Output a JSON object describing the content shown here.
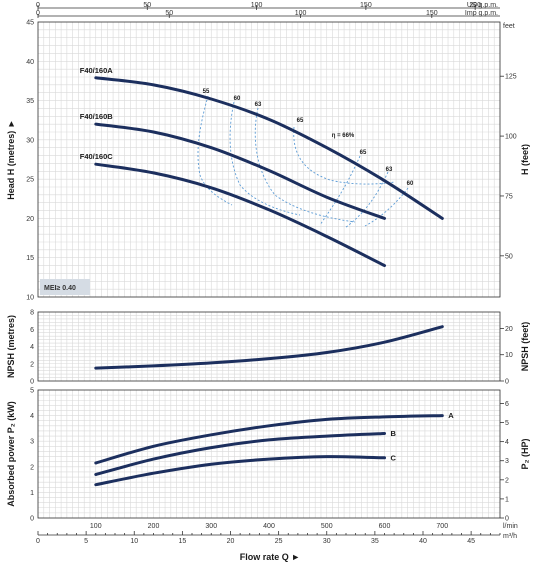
{
  "chart_data": [
    {
      "panel": "head",
      "type": "line",
      "x_unit": "l/min",
      "ylabel": "Head H (metres) ►",
      "ylabel_right": "H (feet)",
      "xlim": [
        0,
        800
      ],
      "ylim": [
        10,
        45
      ],
      "ylim_right": [
        30,
        150
      ],
      "y_ticks": [
        10,
        15,
        20,
        25,
        30,
        35,
        40,
        45
      ],
      "y_ticks_right": [
        50,
        75,
        100,
        125
      ],
      "top_axis_usgpm": {
        "label": "US g.p.m.",
        "ticks": [
          0,
          50,
          100,
          150,
          200
        ]
      },
      "top_axis_impgpm": {
        "label": "Imp g.p.m.",
        "ticks": [
          0,
          50,
          100,
          150
        ]
      },
      "series": [
        {
          "name": "F40/160A",
          "x": [
            100,
            200,
            300,
            400,
            500,
            600,
            700
          ],
          "y": [
            37.9,
            37.0,
            35.2,
            32.6,
            29.0,
            24.8,
            20.0
          ]
        },
        {
          "name": "F40/160B",
          "x": [
            100,
            200,
            300,
            400,
            500,
            600
          ],
          "y": [
            32.0,
            31.0,
            29.0,
            26.1,
            22.7,
            20.0
          ]
        },
        {
          "name": "F40/160C",
          "x": [
            100,
            200,
            300,
            400,
            500,
            600
          ],
          "y": [
            26.9,
            25.8,
            23.9,
            21.1,
            17.7,
            14.0
          ]
        }
      ],
      "efficiency_labels": [
        "55",
        "60",
        "63",
        "65",
        "η = 66%",
        "65",
        "63",
        "60"
      ],
      "mei_label": "MEI≥ 0.40",
      "grid": true
    },
    {
      "panel": "npsh",
      "type": "line",
      "ylabel": "NPSH (metres)",
      "ylabel_right": "NPSH (feet)",
      "ylim": [
        0,
        8
      ],
      "y_ticks": [
        0,
        2,
        4,
        6,
        8
      ],
      "y_ticks_right": [
        0,
        10,
        20
      ],
      "series": [
        {
          "name": "",
          "x": [
            100,
            200,
            300,
            400,
            500,
            600,
            700
          ],
          "y": [
            1.5,
            1.75,
            2.1,
            2.6,
            3.3,
            4.5,
            6.3
          ]
        }
      ],
      "grid": true
    },
    {
      "panel": "power",
      "type": "line",
      "ylabel": "Absorbed power P₂ (kW)",
      "ylabel_right": "P₂ (HP)",
      "ylim": [
        0,
        5
      ],
      "y_ticks": [
        0,
        1,
        2,
        3,
        4,
        5
      ],
      "y_ticks_right": [
        0,
        1,
        2,
        3,
        4,
        5,
        6
      ],
      "x_ticks": [
        100,
        200,
        300,
        400,
        500,
        600,
        700
      ],
      "x_tick_unit": "l/min",
      "series": [
        {
          "name": "A",
          "x": [
            100,
            200,
            300,
            400,
            500,
            600,
            700
          ],
          "y": [
            2.15,
            2.8,
            3.25,
            3.6,
            3.85,
            3.95,
            4.0
          ]
        },
        {
          "name": "B",
          "x": [
            100,
            200,
            300,
            400,
            500,
            600
          ],
          "y": [
            1.7,
            2.3,
            2.75,
            3.05,
            3.2,
            3.3
          ]
        },
        {
          "name": "C",
          "x": [
            100,
            200,
            300,
            400,
            500,
            600
          ],
          "y": [
            1.3,
            1.75,
            2.1,
            2.3,
            2.4,
            2.35
          ]
        }
      ],
      "bottom_axis_m3h": {
        "unit": "m³/h",
        "ticks": [
          0,
          5,
          10,
          15,
          20,
          25,
          30,
          35,
          40,
          45
        ]
      },
      "xlabel": "Flow rate Q ►",
      "grid": true
    }
  ]
}
